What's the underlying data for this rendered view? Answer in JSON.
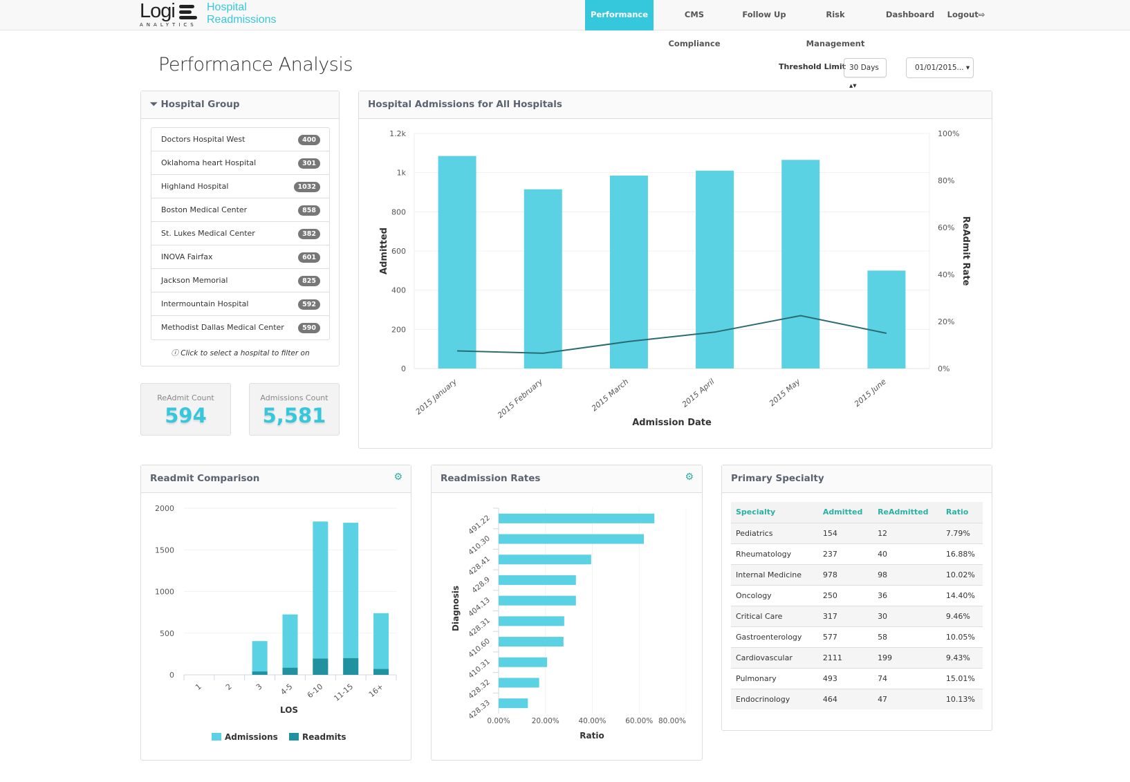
{
  "brand": {
    "logo_text": "Logi",
    "logo_sub": "ANALYTICS",
    "app_title_line1": "Hospital",
    "app_title_line2": "Readmissions",
    "accent": "#35c8dd"
  },
  "nav": [
    {
      "label": "Performance",
      "active": true
    },
    {
      "label": "CMS Compliance"
    },
    {
      "label": "Follow Up"
    },
    {
      "label": "Risk Management"
    },
    {
      "label": "Dashboard"
    },
    {
      "label": "Logout⇨"
    }
  ],
  "page": {
    "title": "Performance Analysis",
    "threshold_label": "Threshold Limit",
    "threshold_value": "30 Days ▴▾",
    "date_value": "01/01/2015... ▾"
  },
  "hospital_group": {
    "title": "Hospital Group",
    "hint": "Click to select a hospital to filter on",
    "items": [
      {
        "name": "Doctors Hospital West",
        "count": "400"
      },
      {
        "name": "Oklahoma heart Hospital",
        "count": "301"
      },
      {
        "name": "Highland Hospital",
        "count": "1032"
      },
      {
        "name": "Boston Medical Center",
        "count": "858"
      },
      {
        "name": "St. Lukes Medical Center",
        "count": "382"
      },
      {
        "name": "INOVA Fairfax",
        "count": "601"
      },
      {
        "name": "Jackson Memorial",
        "count": "825"
      },
      {
        "name": "Intermountain Hospital",
        "count": "592"
      },
      {
        "name": "Methodist Dallas Medical Center",
        "count": "590"
      }
    ]
  },
  "kpis": [
    {
      "label": "ReAdmit Count",
      "value": "594"
    },
    {
      "label": "Admissions Count",
      "value": "5,581"
    }
  ],
  "panels": {
    "admissions": "Hospital Admissions for All Hospitals",
    "readmit_comparison": "Readmit Comparison",
    "readmission_rates": "Readmission Rates",
    "primary_specialty": "Primary Specialty"
  },
  "chart_data": [
    {
      "type": "bar",
      "title": "Hospital Admissions for All Hospitals",
      "categories": [
        "2015 January",
        "2015 February",
        "2015 March",
        "2015 April",
        "2015 May",
        "2015 June"
      ],
      "series": [
        {
          "name": "Admitted",
          "type": "bar",
          "values": [
            1085,
            915,
            985,
            1010,
            1065,
            500
          ],
          "color": "#5bd2e3"
        },
        {
          "name": "ReAdmit Rate",
          "type": "line",
          "axis": "right",
          "values": [
            7.5,
            6.5,
            11.5,
            15.5,
            22.5,
            15
          ],
          "color": "#2a6b72"
        }
      ],
      "xlabel": "Admission Date",
      "ylabel": "Admitted",
      "y2label": "ReAdmit Rate",
      "ylim": [
        0,
        1200
      ],
      "y2lim": [
        0,
        100
      ],
      "yticks": [
        "0",
        "200",
        "400",
        "600",
        "800",
        "1k",
        "1.2k"
      ],
      "y2ticks": [
        "0%",
        "20%",
        "40%",
        "60%",
        "80%",
        "100%"
      ]
    },
    {
      "type": "bar",
      "stacked": true,
      "title": "Readmit Comparison",
      "categories": [
        "1",
        "2",
        "3",
        "4-5",
        "6-10",
        "11-15",
        "16+"
      ],
      "series": [
        {
          "name": "Admissions",
          "values": [
            0,
            0,
            405,
            725,
            1840,
            1825,
            740
          ],
          "color": "#5bd2e3"
        },
        {
          "name": "Readmits",
          "values": [
            0,
            0,
            40,
            85,
            195,
            200,
            70
          ],
          "color": "#2191a0"
        }
      ],
      "xlabel": "LOS",
      "ylim": [
        0,
        2000
      ],
      "yticks": [
        "0",
        "500",
        "1000",
        "1500",
        "2000"
      ],
      "legend": "bottom"
    },
    {
      "type": "bar",
      "orientation": "horizontal",
      "title": "Readmission Rates",
      "categories": [
        "491.22",
        "410.30",
        "428.41",
        "428.9",
        "404.13",
        "428.31",
        "410.60",
        "410.31",
        "428.32",
        "428.33"
      ],
      "values": [
        66.5,
        62,
        39.5,
        33,
        33,
        28,
        27.7,
        20.7,
        17.3,
        12.5
      ],
      "xlabel": "Ratio",
      "ylabel": "Diagnosis",
      "xlim": [
        0,
        80
      ],
      "xticks": [
        "0.00%",
        "20.00%",
        "40.00%",
        "60.00%",
        "80.00%"
      ],
      "color": "#5bd2e3"
    }
  ],
  "specialty_table": {
    "columns": [
      "Specialty",
      "Admitted",
      "ReAdmitted",
      "Ratio"
    ],
    "rows": [
      [
        "Pediatrics",
        "154",
        "12",
        "7.79%"
      ],
      [
        "Rheumatology",
        "237",
        "40",
        "16.88%"
      ],
      [
        "Internal Medicine",
        "978",
        "98",
        "10.02%"
      ],
      [
        "Oncology",
        "250",
        "36",
        "14.40%"
      ],
      [
        "Critical Care",
        "317",
        "30",
        "9.46%"
      ],
      [
        "Gastroenterology",
        "577",
        "58",
        "10.05%"
      ],
      [
        "Cardiovascular",
        "2111",
        "199",
        "9.43%"
      ],
      [
        "Pulmonary",
        "493",
        "74",
        "15.01%"
      ],
      [
        "Endocrinology",
        "464",
        "47",
        "10.13%"
      ]
    ]
  }
}
